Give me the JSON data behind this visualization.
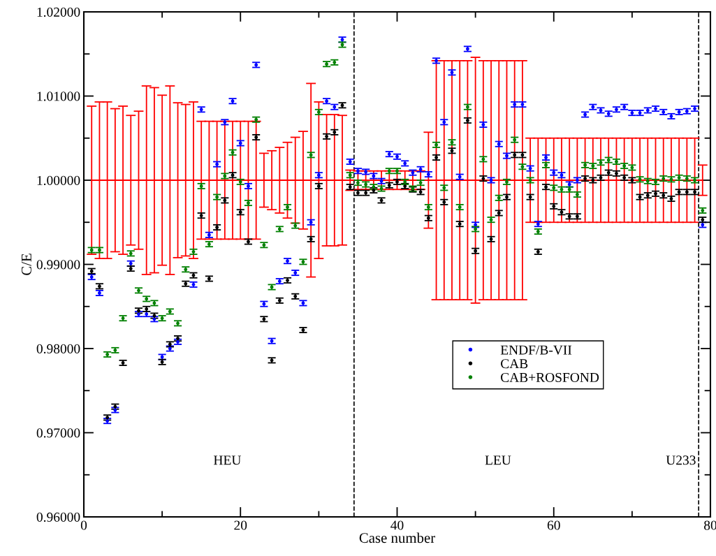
{
  "chart_data": {
    "type": "scatter",
    "xlabel": "Case number",
    "ylabel": "C/E",
    "x": [
      1,
      2,
      3,
      4,
      5,
      6,
      7,
      8,
      9,
      10,
      11,
      12,
      13,
      14,
      15,
      16,
      17,
      18,
      19,
      20,
      21,
      22,
      23,
      24,
      25,
      26,
      27,
      28,
      29,
      30,
      31,
      32,
      33,
      34,
      35,
      36,
      37,
      38,
      39,
      40,
      41,
      42,
      43,
      44,
      45,
      46,
      47,
      48,
      49,
      50,
      51,
      52,
      53,
      54,
      55,
      56,
      57,
      58,
      59,
      60,
      61,
      62,
      63,
      64,
      65,
      66,
      67,
      68,
      69,
      70,
      71,
      72,
      73,
      74,
      75,
      76,
      77,
      78,
      79
    ],
    "xlim": [
      0,
      80
    ],
    "xticks": [
      0,
      {
        "value": 10,
        "label": null
      },
      20,
      {
        "value": 30,
        "label": null
      },
      40,
      {
        "value": 50,
        "label": null
      },
      60,
      {
        "value": 70,
        "label": null
      },
      80
    ],
    "ylim": [
      0.96,
      1.02
    ],
    "yticks": [
      {
        "value": 0.96,
        "label": "0.96000"
      },
      {
        "value": 0.965,
        "label": null
      },
      {
        "value": 0.97,
        "label": "0.97000"
      },
      {
        "value": 0.975,
        "label": null
      },
      {
        "value": 0.98,
        "label": "0.98000"
      },
      {
        "value": 0.985,
        "label": null
      },
      {
        "value": 0.99,
        "label": "0.99000"
      },
      {
        "value": 0.995,
        "label": null
      },
      {
        "value": 1.0,
        "label": "1.00000"
      },
      {
        "value": 1.005,
        "label": null
      },
      {
        "value": 1.01,
        "label": "1.01000"
      },
      {
        "value": 1.015,
        "label": null
      },
      {
        "value": 1.02,
        "label": "1.02000"
      }
    ],
    "marker": "circle",
    "legend": "bottom right",
    "grid": false,
    "series": [
      {
        "type": "line",
        "color": "#ff0000",
        "marker": "none",
        "values": [
          1,
          1,
          1,
          1,
          1,
          1,
          1,
          1,
          1,
          1,
          1,
          1,
          1,
          1,
          1,
          1,
          1,
          1,
          1,
          1,
          1,
          1,
          1,
          1,
          1,
          1,
          1,
          1,
          1,
          1,
          1,
          1,
          1,
          1,
          1,
          1,
          1,
          1,
          1,
          1,
          1,
          1,
          1,
          1,
          1,
          1,
          1,
          1,
          1,
          1,
          1,
          1,
          1,
          1,
          1,
          1,
          1,
          1,
          1,
          1,
          1,
          1,
          1,
          1,
          1,
          1,
          1,
          1,
          1,
          1,
          1,
          1,
          1,
          1,
          1,
          1,
          1,
          1,
          1
        ],
        "errors": [
          0.0088,
          0.0093,
          0.0093,
          0.0085,
          0.0088,
          0.0077,
          0.0082,
          0.0112,
          0.011,
          0.0101,
          0.0112,
          0.0092,
          0.009,
          0.0093,
          0.007,
          0.007,
          0.007,
          0.007,
          0.007,
          0.007,
          0.007,
          0.007,
          0.0032,
          0.0035,
          0.0039,
          0.0045,
          0.0051,
          0.0058,
          0.0115,
          0.0093,
          0.0078,
          0.0078,
          0.0077,
          0.0012,
          0.0011,
          0.0011,
          0.0011,
          0.0011,
          0.0011,
          0.0011,
          0.0011,
          0.0011,
          0.0011,
          0.0057,
          0.0142,
          0.0142,
          0.0142,
          0.0142,
          0.0142,
          0.0146,
          0.0142,
          0.0142,
          0.0142,
          0.0142,
          0.0142,
          0.0142,
          0.005,
          0.005,
          0.005,
          0.005,
          0.005,
          0.005,
          0.005,
          0.005,
          0.005,
          0.005,
          0.005,
          0.005,
          0.005,
          0.005,
          0.005,
          0.005,
          0.005,
          0.005,
          0.005,
          0.005,
          0.005,
          0.005,
          0.0018
        ]
      },
      {
        "name": "ENDF/B-VII",
        "color": "#0000ff",
        "values": [
          0.9885,
          0.9866,
          0.9714,
          0.9727,
          null,
          0.9901,
          0.9841,
          0.9841,
          0.9835,
          0.979,
          0.98,
          0.9808,
          null,
          0.9876,
          1.0084,
          0.9935,
          1.0019,
          1.0069,
          1.0094,
          1.0044,
          0.9993,
          1.0137,
          0.9853,
          0.9809,
          0.988,
          0.9904,
          0.989,
          0.9854,
          0.995,
          1.0006,
          1.0094,
          1.0087,
          1.0167,
          1.0022,
          1.0011,
          1.001,
          1.0005,
          0.9999,
          1.0031,
          1.0028,
          1.002,
          1.0009,
          1.0013,
          1.0007,
          1.0142,
          1.0069,
          1.0128,
          1.0004,
          1.0156,
          0.9947,
          1.0066,
          1.0,
          1.0043,
          1.0029,
          1.009,
          1.009,
          1.0014,
          0.9948,
          1.0027,
          1.0009,
          1.0006,
          0.9995,
          1.0,
          1.0078,
          1.0087,
          1.0083,
          1.0079,
          1.0084,
          1.0087,
          1.008,
          1.008,
          1.0083,
          1.0085,
          1.0081,
          1.0076,
          1.0081,
          1.0082,
          1.0085,
          0.9947
        ],
        "errors": [
          0.0003,
          0.0003,
          0.0003,
          0.0003,
          null,
          0.0003,
          0.0003,
          0.0003,
          0.0003,
          0.0003,
          0.0003,
          0.0003,
          null,
          0.0003,
          0.0003,
          0.0003,
          0.0003,
          0.0003,
          0.0003,
          0.0003,
          0.0003,
          0.0003,
          0.0003,
          0.0003,
          0.0003,
          0.0003,
          0.0003,
          0.0003,
          0.0003,
          0.0003,
          0.0003,
          0.0003,
          0.0003,
          0.0003,
          0.0003,
          0.0003,
          0.0003,
          0.0003,
          0.0003,
          0.0003,
          0.0003,
          0.0003,
          0.0003,
          0.0003,
          0.0003,
          0.0003,
          0.0003,
          0.0003,
          0.0003,
          0.0003,
          0.0003,
          0.0003,
          0.0003,
          0.0003,
          0.0003,
          0.0003,
          0.0003,
          0.0003,
          0.0003,
          0.0003,
          0.0003,
          0.0003,
          0.0003,
          0.0003,
          0.0003,
          0.0003,
          0.0003,
          0.0003,
          0.0003,
          0.0003,
          0.0003,
          0.0003,
          0.0003,
          0.0003,
          0.0003,
          0.0003,
          0.0003,
          0.0003,
          0.0003
        ]
      },
      {
        "name": "CAB",
        "color": "#000000",
        "values": [
          0.9892,
          0.9874,
          0.9718,
          0.9731,
          0.9783,
          0.9895,
          0.9845,
          0.9847,
          0.9839,
          0.9784,
          0.9805,
          0.9812,
          0.9877,
          0.9887,
          0.9958,
          0.9883,
          0.9944,
          0.9976,
          1.0006,
          0.9962,
          0.9927,
          1.0051,
          0.9835,
          0.9786,
          0.9857,
          0.9881,
          0.9862,
          0.9822,
          0.993,
          0.9993,
          1.0052,
          1.0057,
          1.0089,
          0.9992,
          0.9985,
          0.9985,
          0.9988,
          0.9976,
          0.9994,
          0.9998,
          0.9993,
          0.9989,
          0.9986,
          0.9955,
          1.0027,
          0.9974,
          1.0035,
          0.9948,
          1.0071,
          0.9916,
          1.0002,
          0.993,
          0.9961,
          0.998,
          1.003,
          1.003,
          0.998,
          0.9915,
          0.9992,
          0.9969,
          0.9962,
          0.9957,
          0.9957,
          1.0002,
          1.0,
          1.0003,
          1.0009,
          1.0008,
          1.0003,
          1.0,
          0.998,
          0.9982,
          0.9984,
          0.9982,
          0.9978,
          0.9986,
          0.9986,
          0.9986,
          0.9953
        ],
        "errors": [
          0.0003,
          0.0003,
          0.0003,
          0.0003,
          0.0003,
          0.0003,
          0.0003,
          0.0003,
          0.0003,
          0.0003,
          0.0003,
          0.0003,
          0.0003,
          0.0003,
          0.0003,
          0.0003,
          0.0003,
          0.0003,
          0.0003,
          0.0003,
          0.0003,
          0.0003,
          0.0003,
          0.0003,
          0.0003,
          0.0003,
          0.0003,
          0.0003,
          0.0003,
          0.0003,
          0.0003,
          0.0003,
          0.0003,
          0.0003,
          0.0003,
          0.0003,
          0.0003,
          0.0003,
          0.0003,
          0.0003,
          0.0003,
          0.0003,
          0.0003,
          0.0003,
          0.0003,
          0.0003,
          0.0003,
          0.0003,
          0.0003,
          0.0003,
          0.0003,
          0.0003,
          0.0003,
          0.0003,
          0.0003,
          0.0003,
          0.0003,
          0.0003,
          0.0003,
          0.0003,
          0.0003,
          0.0003,
          0.0003,
          0.0003,
          0.0003,
          0.0003,
          0.0003,
          0.0003,
          0.0003,
          0.0003,
          0.0003,
          0.0003,
          0.0003,
          0.0003,
          0.0003,
          0.0003,
          0.0003,
          0.0003,
          0.0003
        ]
      },
      {
        "name": "CAB+ROSFOND",
        "color": "#008000",
        "values": [
          0.9917,
          0.9917,
          0.9793,
          0.9798,
          0.9836,
          0.9913,
          0.9869,
          0.9859,
          0.9854,
          0.9836,
          0.9844,
          0.983,
          0.9894,
          0.9915,
          0.9993,
          0.9924,
          0.998,
          1.0005,
          1.0033,
          0.9998,
          0.9973,
          1.0072,
          0.9923,
          0.9873,
          0.9942,
          0.9968,
          0.9946,
          0.9903,
          1.003,
          1.0081,
          1.0138,
          1.014,
          1.0161,
          1.0006,
          0.9997,
          0.9995,
          0.9992,
          0.999,
          1.0011,
          1.0011,
          0.9998,
          0.999,
          0.9997,
          0.9968,
          1.0042,
          0.9991,
          1.0045,
          0.9968,
          1.0087,
          0.9942,
          1.0025,
          0.9953,
          0.9979,
          0.9998,
          1.0048,
          1.0016,
          1.0,
          0.9939,
          1.0018,
          0.9991,
          0.9989,
          0.9989,
          0.9983,
          1.0018,
          1.0017,
          1.0021,
          1.0024,
          1.0022,
          1.0017,
          1.0015,
          1.0001,
          0.9999,
          0.9998,
          1.0002,
          1.0001,
          1.0003,
          1.0002,
          1.0,
          0.9964
        ],
        "errors": [
          0.0003,
          0.0003,
          0.0003,
          0.0003,
          0.0003,
          0.0003,
          0.0003,
          0.0003,
          0.0003,
          0.0003,
          0.0003,
          0.0003,
          0.0003,
          0.0003,
          0.0003,
          0.0003,
          0.0003,
          0.0003,
          0.0003,
          0.0003,
          0.0003,
          0.0003,
          0.0003,
          0.0003,
          0.0003,
          0.0003,
          0.0003,
          0.0003,
          0.0003,
          0.0003,
          0.0003,
          0.0003,
          0.0003,
          0.0003,
          0.0003,
          0.0003,
          0.0003,
          0.0003,
          0.0003,
          0.0003,
          0.0003,
          0.0003,
          0.0003,
          0.0003,
          0.0003,
          0.0003,
          0.0003,
          0.0003,
          0.0003,
          0.0003,
          0.0003,
          0.0003,
          0.0003,
          0.0003,
          0.0003,
          0.0003,
          0.0003,
          0.0003,
          0.0003,
          0.0003,
          0.0003,
          0.0003,
          0.0003,
          0.0003,
          0.0003,
          0.0003,
          0.0003,
          0.0003,
          0.0003,
          0.0003,
          0.0003,
          0.0003,
          0.0003,
          0.0003,
          0.0003,
          0.0003,
          0.0003,
          0.0003,
          0.0003
        ]
      }
    ],
    "ref_lines": [
      {
        "axis": "x",
        "value": 34.5,
        "color": "#000000",
        "line_style": "dashed"
      },
      {
        "axis": "x",
        "value": 78.5,
        "color": "#000000",
        "line_style": "dashed"
      }
    ],
    "annotations": [
      "HEU",
      "LEU",
      "U233"
    ]
  }
}
